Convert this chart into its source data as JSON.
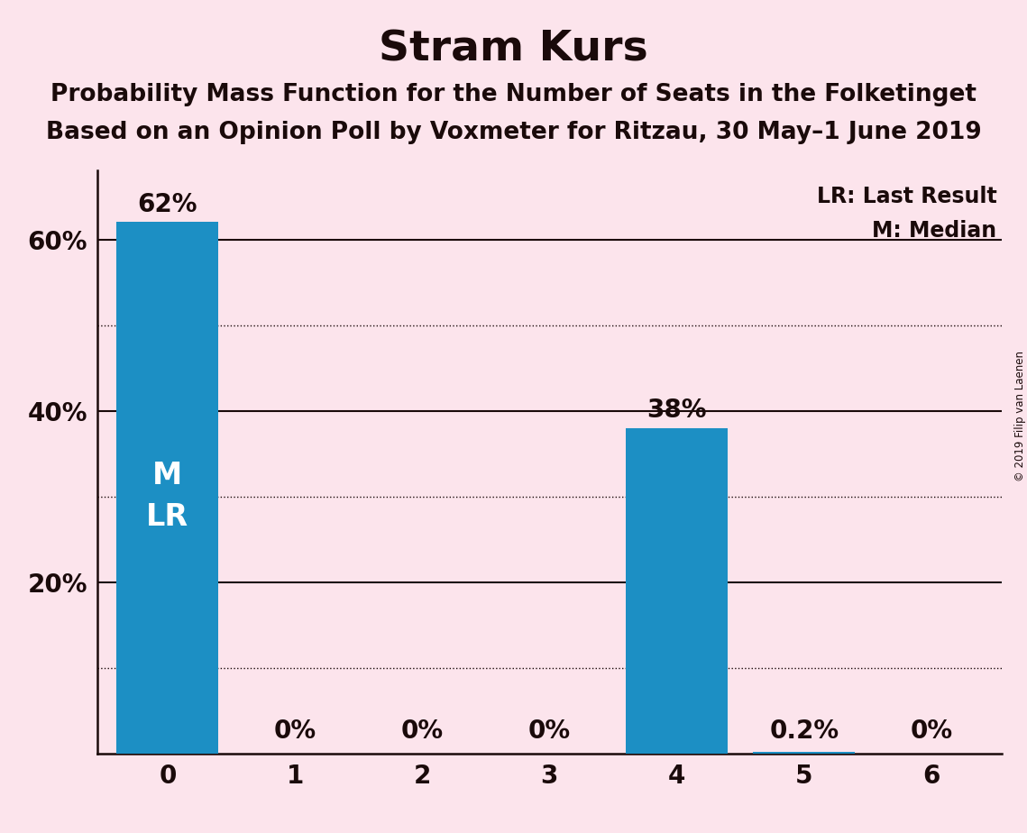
{
  "title": "Stram Kurs",
  "subtitle1": "Probability Mass Function for the Number of Seats in the Folketinget",
  "subtitle2": "Based on an Opinion Poll by Voxmeter for Ritzau, 30 May–1 June 2019",
  "copyright": "© 2019 Filip van Laenen",
  "categories": [
    0,
    1,
    2,
    3,
    4,
    5,
    6
  ],
  "values": [
    0.62,
    0.0,
    0.0,
    0.0,
    0.38,
    0.002,
    0.0
  ],
  "bar_labels": [
    "62%",
    "0%",
    "0%",
    "0%",
    "38%",
    "0.2%",
    "0%"
  ],
  "bar_color": "#1c8fc4",
  "background_color": "#fce4ec",
  "ylim": [
    0,
    0.68
  ],
  "yticks": [
    0.2,
    0.4,
    0.6
  ],
  "ytick_labels": [
    "20%",
    "40%",
    "60%"
  ],
  "solid_gridlines": [
    0.2,
    0.4,
    0.6
  ],
  "dotted_gridlines": [
    0.1,
    0.3,
    0.5
  ],
  "legend_text1": "LR: Last Result",
  "legend_text2": "M: Median",
  "bar_annotation_x0": "M\nLR",
  "title_fontsize": 34,
  "subtitle_fontsize": 19,
  "bar_label_fontsize": 20,
  "axis_label_fontsize": 20,
  "legend_fontsize": 17,
  "text_color": "#1a0a0a",
  "grid_color": "#1a0a0a",
  "annotation_fontsize": 24
}
